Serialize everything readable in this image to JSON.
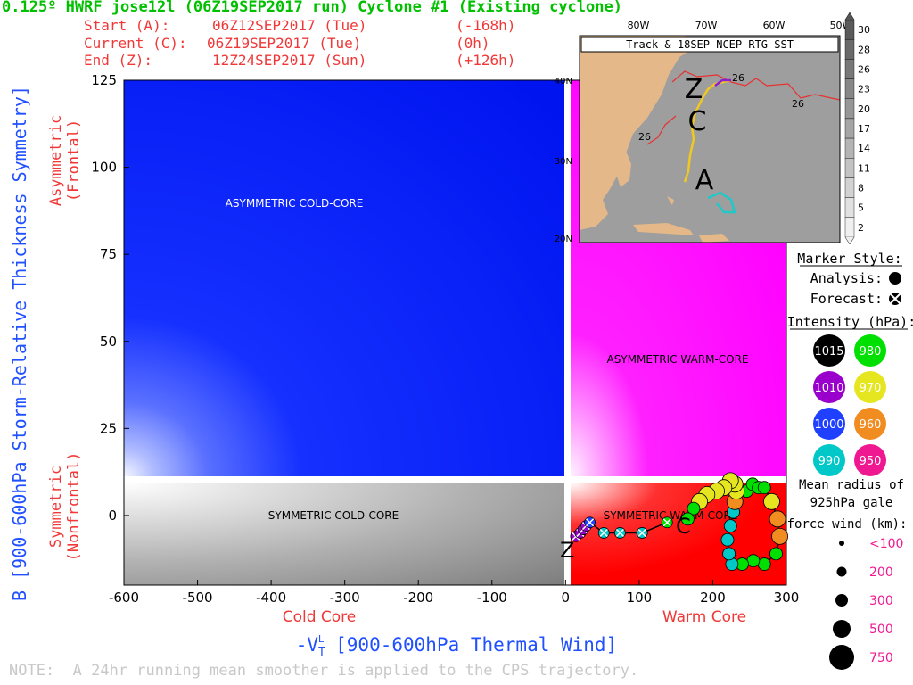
{
  "header": {
    "title": "0.125º HWRF jose12l (06Z19SEP2017 run) Cyclone #1 (Existing cyclone)",
    "start_label": "Start (A):",
    "start_value": "06Z12SEP2017 (Tue)",
    "start_offset": "(-168h)",
    "current_label": "Current (C):",
    "current_value": "06Z19SEP2017 (Tue)",
    "current_offset": "(0h)",
    "end_label": "End (Z):",
    "end_value": "12Z24SEP2017 (Sun)",
    "end_offset": "(+126h)"
  },
  "footer": {
    "note": "NOTE:  A 24hr running mean smoother is applied to the CPS trajectory."
  },
  "chart_data": [
    {
      "type": "scatter",
      "xlabel": "-V",
      "xlabel_sub": "T",
      "xlabel_sup": "L",
      "xlabel_rest": " [900-600hPa Thermal Wind]",
      "ylabel": "B [900-600hPa Storm-Relative Thickness Symmetry]",
      "xlim": [
        -600,
        300
      ],
      "ylim": [
        -20,
        125
      ],
      "xticks": [
        "-600",
        "-500",
        "-400",
        "-300",
        "-200",
        "-100",
        "0",
        "100",
        "200",
        "300"
      ],
      "yticks": [
        "0",
        "25",
        "50",
        "75",
        "100",
        "125"
      ],
      "x_left_label": "Cold Core",
      "x_right_label": "Warm Core",
      "y_top_label": "Asymmetric",
      "y_top_sub": "(Frontal)",
      "y_bottom_label": "Symmetric",
      "y_bottom_sub": "(Nonfrontal)",
      "region_labels": {
        "asym_cold": "ASYMMETRIC COLD-CORE",
        "asym_warm": "ASYMMETRIC WARM-CORE",
        "sym_cold": "SYMMETRIC COLD-CORE",
        "sym_warm": "SYMMETRIC WARM-CORE"
      },
      "track_markers": {
        "start": "A",
        "current": "C",
        "end": "Z"
      },
      "series": [
        {
          "values": [
            {
              "x": 246,
              "y": 7,
              "p": 980
            },
            {
              "x": 254,
              "y": 9,
              "p": 980
            },
            {
              "x": 262,
              "y": 8,
              "p": 980
            },
            {
              "x": 270,
              "y": 8,
              "p": 980
            },
            {
              "x": 280,
              "y": 4,
              "p": 970
            },
            {
              "x": 288,
              "y": -1,
              "p": 960
            },
            {
              "x": 291,
              "y": -6,
              "p": 960
            },
            {
              "x": 286,
              "y": -11,
              "p": 980
            },
            {
              "x": 270,
              "y": -14,
              "p": 980
            },
            {
              "x": 255,
              "y": -13,
              "p": 980
            },
            {
              "x": 240,
              "y": -14,
              "p": 980
            },
            {
              "x": 226,
              "y": -14,
              "p": 990
            },
            {
              "x": 222,
              "y": -11,
              "p": 990
            },
            {
              "x": 220,
              "y": -7,
              "p": 990
            },
            {
              "x": 224,
              "y": -3,
              "p": 990
            },
            {
              "x": 228,
              "y": 1,
              "p": 990
            },
            {
              "x": 230,
              "y": 4,
              "p": 960
            },
            {
              "x": 232,
              "y": 7,
              "p": 970
            },
            {
              "x": 230,
              "y": 9,
              "p": 970
            },
            {
              "x": 224,
              "y": 10,
              "p": 970
            },
            {
              "x": 215,
              "y": 8,
              "p": 970
            },
            {
              "x": 205,
              "y": 7,
              "p": 970
            },
            {
              "x": 192,
              "y": 6,
              "p": 970
            },
            {
              "x": 182,
              "y": 4,
              "p": 970
            },
            {
              "x": 174,
              "y": 2,
              "p": 980
            },
            {
              "x": 166,
              "y": -1,
              "p": 980
            }
          ]
        },
        {
          "values": [
            {
              "x": 14,
              "y": -6,
              "p": 1010
            },
            {
              "x": 20,
              "y": -5,
              "p": 1010
            },
            {
              "x": 24,
              "y": -4,
              "p": 1010
            },
            {
              "x": 28,
              "y": -3,
              "p": 1010
            },
            {
              "x": 33,
              "y": -2,
              "p": 1000
            },
            {
              "x": 52,
              "y": -5,
              "p": 990
            },
            {
              "x": 74,
              "y": -5,
              "p": 990
            },
            {
              "x": 104,
              "y": -5,
              "p": 990
            },
            {
              "x": 138,
              "y": -2,
              "p": 980
            }
          ]
        }
      ]
    },
    {
      "type": "map",
      "title": "Track & 18SEP NCEP RTG SST",
      "lon_ticks": [
        "80W",
        "70W",
        "60W",
        "50W"
      ],
      "lat_ticks": [
        "40N",
        "30N",
        "20N"
      ],
      "isotherm_labels": [
        "26",
        "26",
        "26"
      ],
      "track_markers": {
        "start": "A",
        "current": "C",
        "end": "Z"
      },
      "colorbar_ticks": [
        "30",
        "28",
        "26",
        "23",
        "20",
        "17",
        "14",
        "11",
        "8",
        "5",
        "2"
      ]
    }
  ],
  "legend": {
    "marker_style_title": "Marker Style:",
    "analysis_label": "Analysis:",
    "forecast_label": "Forecast:",
    "intensity_title": "Intensity (hPa):",
    "intensity": [
      {
        "value": "1015",
        "color": "#000000"
      },
      {
        "value": "980",
        "color": "#00e000"
      },
      {
        "value": "1010",
        "color": "#9900cc"
      },
      {
        "value": "970",
        "color": "#e6e620"
      },
      {
        "value": "1000",
        "color": "#2040ff"
      },
      {
        "value": "960",
        "color": "#f08c20"
      },
      {
        "value": "990",
        "color": "#00c8c8"
      },
      {
        "value": "950",
        "color": "#f01890"
      }
    ],
    "radius_title_1": "Mean radius of",
    "radius_title_2": "925hPa gale",
    "radius_title_3": "force wind (km):",
    "radius": [
      "<100",
      "200",
      "300",
      "500",
      "750"
    ]
  }
}
